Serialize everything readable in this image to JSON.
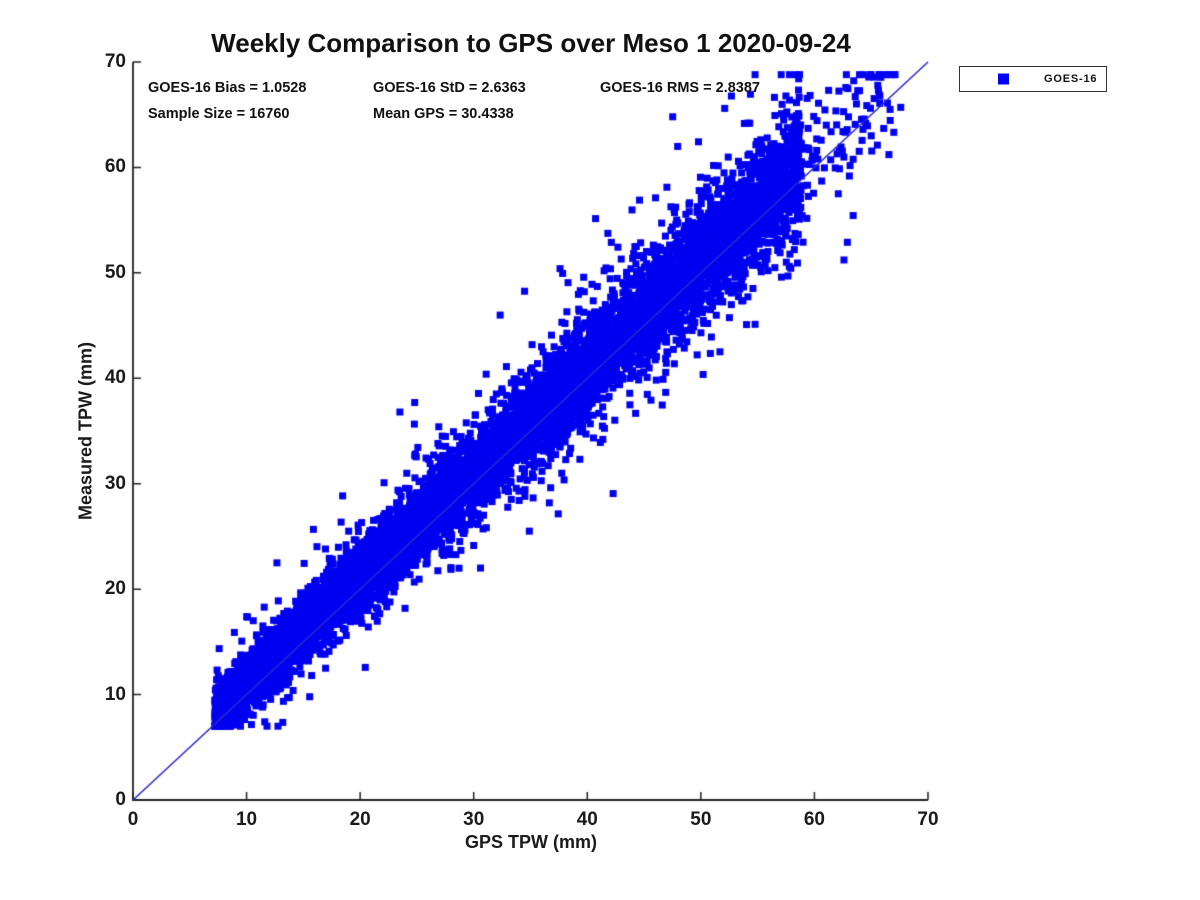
{
  "chart_data": {
    "type": "scatter",
    "title": "Weekly Comparison to GPS over Meso 1 2020-09-24",
    "xlabel": "GPS TPW (mm)",
    "ylabel": "Measured TPW (mm)",
    "xlim": [
      0,
      70
    ],
    "ylim": [
      0,
      70
    ],
    "x_ticks": [
      0,
      10,
      20,
      30,
      40,
      50,
      60,
      70
    ],
    "y_ticks": [
      0,
      10,
      20,
      30,
      40,
      50,
      60,
      70
    ],
    "grid": false,
    "legend": {
      "position": "outside-top-right",
      "entries": [
        {
          "label": "GOES-16",
          "marker": "square",
          "color": "#0000f0"
        }
      ]
    },
    "stats": {
      "bias": 1.0528,
      "std": 2.6363,
      "rms": 2.8387,
      "sample_size": 16760,
      "mean_gps": 30.4338
    },
    "annotations": [
      "GOES-16 Bias = 1.0528",
      "GOES-16 StD = 2.6363",
      "GOES-16 RMS = 2.8387",
      "Sample Size = 16760",
      "Mean GPS = 30.4338"
    ],
    "identity_line": {
      "from": [
        0,
        0
      ],
      "to": [
        70,
        70
      ],
      "color": "#2a2ace",
      "width": 1.6
    },
    "series": [
      {
        "name": "GOES-16",
        "marker": "square",
        "marker_px": 7,
        "color": "#0000f0",
        "n_points": 16760,
        "relation": "y = x + 1.0528 (std 2.6363)",
        "distribution": {
          "seed": 42,
          "render_points": 9000,
          "x_min": 7.2,
          "x_main_span": 51.5,
          "x_pow": 1.08,
          "tail_frac": 0.015,
          "tail_start": 58.5,
          "tail_span": 9.0,
          "tail_pow": 1.8,
          "bias": 1.0528,
          "noise_core_std": 2.0,
          "noise_mid_std": 3.6,
          "noise_wide_std": 6.0,
          "core_frac": 0.85,
          "mid_frac": 0.13,
          "spread_base": 0.45,
          "spread_slope": 0.016,
          "y_min_clip": 7.0,
          "x_max_clip": 68.0
        },
        "outliers": [
          [
            30.6,
            22.0
          ],
          [
            34.9,
            25.5
          ],
          [
            52.1,
            65.6
          ],
          [
            67.6,
            65.7
          ],
          [
            63.0,
            64.8
          ],
          [
            62.9,
            52.9
          ],
          [
            37.6,
            50.4
          ],
          [
            23.5,
            36.8
          ],
          [
            24.8,
            37.7
          ],
          [
            44.6,
            56.9
          ],
          [
            62.1,
            57.5
          ],
          [
            65.0,
            63.0
          ]
        ]
      }
    ]
  },
  "colors": {
    "marker": "#0000f0",
    "identity_line": "#2a2ace",
    "axis": "#222222",
    "text": "#111111",
    "background": "#ffffff"
  }
}
